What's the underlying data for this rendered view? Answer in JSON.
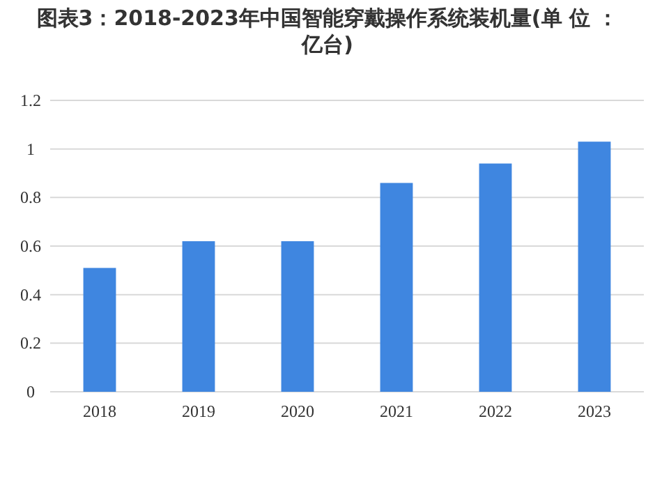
{
  "chart_data": {
    "type": "bar",
    "title": "图表3：2018-2023年中国智能穿戴操作系统装机量(单 位 ：亿台)",
    "categories": [
      "2018",
      "2019",
      "2020",
      "2021",
      "2022",
      "2023"
    ],
    "values": [
      0.51,
      0.62,
      0.62,
      0.86,
      0.94,
      1.03
    ],
    "color": "#3f86e0",
    "ylim": [
      0,
      1.2
    ],
    "yticks": [
      0,
      0.2,
      0.4,
      0.6,
      0.8,
      1,
      1.2
    ],
    "grid": "y"
  }
}
